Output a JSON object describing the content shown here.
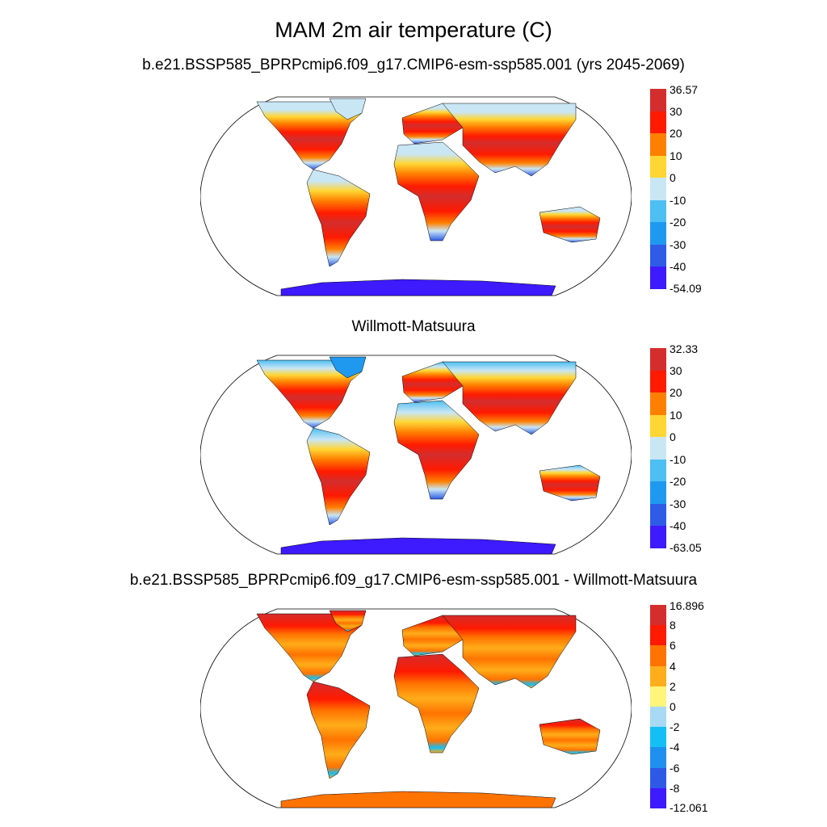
{
  "title": "MAM 2m air temperature (C)",
  "panels": [
    {
      "id": "model",
      "title": "b.e21.BSSP585_BPRPcmip6.f09_g17.CMIP6-esm-ssp585.001 (yrs 2045-2069)",
      "max_label": "36.57",
      "min_label": "-54.09",
      "levels": [
        "30",
        "20",
        "10",
        "0",
        "-10",
        "-20",
        "-30",
        "-40"
      ],
      "colors": [
        "#d42d2d",
        "#ff1a00",
        "#ff8000",
        "#ffd633",
        "#c9e6f5",
        "#4dbff2",
        "#1f99f0",
        "#2e5ce6",
        "#3d1aff"
      ]
    },
    {
      "id": "obs",
      "title": "Willmott-Matsuura",
      "max_label": "32.33",
      "min_label": "-63.05",
      "levels": [
        "30",
        "20",
        "10",
        "0",
        "-10",
        "-20",
        "-30",
        "-40"
      ],
      "colors": [
        "#d42d2d",
        "#ff1a00",
        "#ff8000",
        "#ffd633",
        "#c9e6f5",
        "#4dbff2",
        "#1f99f0",
        "#2e5ce6",
        "#3d1aff"
      ]
    },
    {
      "id": "diff",
      "title": "b.e21.BSSP585_BPRPcmip6.f09_g17.CMIP6-esm-ssp585.001 - Willmott-Matsuura",
      "max_label": "16.896",
      "min_label": "-12.061",
      "levels": [
        "8",
        "6",
        "4",
        "2",
        "0",
        "-2",
        "-4",
        "-6",
        "-8"
      ],
      "colors": [
        "#d42d2d",
        "#ff1a00",
        "#ff7300",
        "#ffad1a",
        "#fff57a",
        "#a8d9f5",
        "#14bff5",
        "#1f8ff0",
        "#2e59e6",
        "#3d1aff"
      ]
    }
  ]
}
